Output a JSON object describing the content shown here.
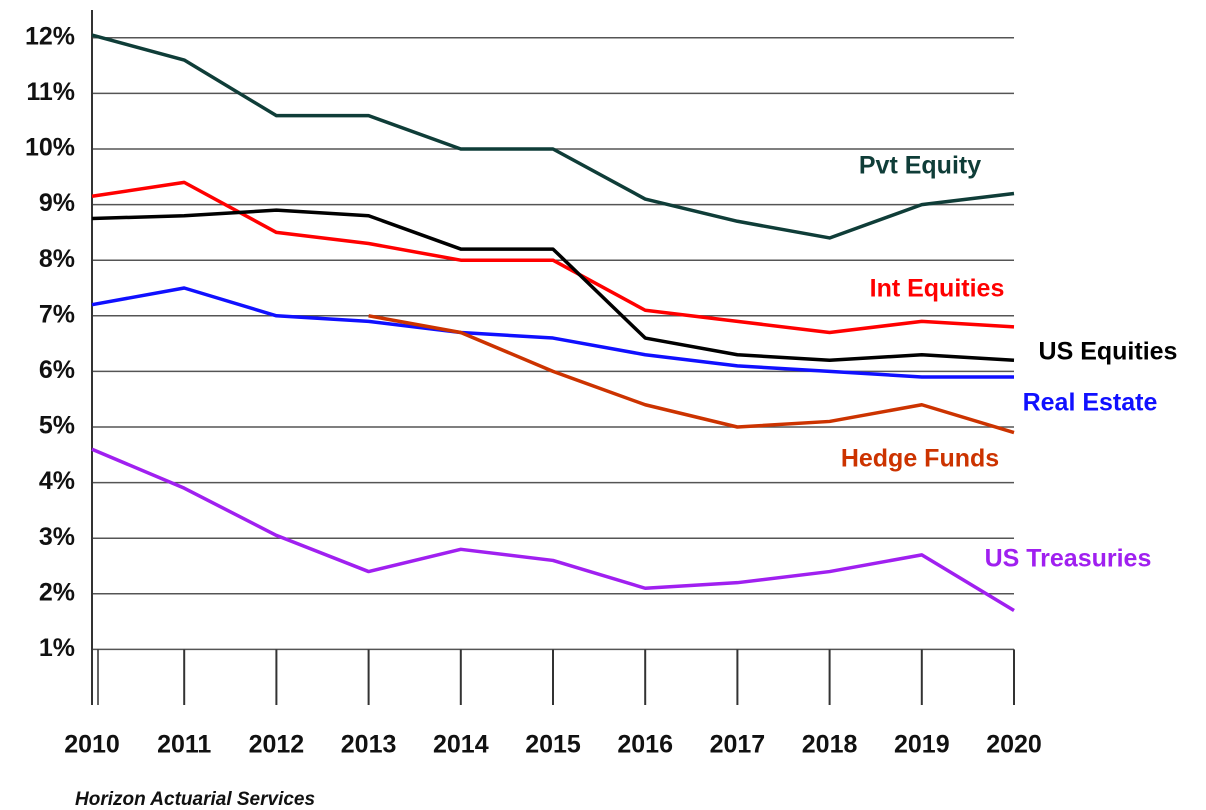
{
  "chart_data": {
    "type": "line",
    "categories": [
      "2010",
      "2011",
      "2012",
      "2013",
      "2014",
      "2015",
      "2016",
      "2017",
      "2018",
      "2019",
      "2020"
    ],
    "series": [
      {
        "name": "Pvt Equity",
        "color": "#0f3d38",
        "values": [
          12.05,
          11.6,
          10.6,
          10.6,
          10.0,
          10.0,
          9.1,
          8.7,
          8.4,
          9.0,
          9.2
        ]
      },
      {
        "name": "Int Equities",
        "color": "#ff0000",
        "values": [
          9.15,
          9.4,
          8.5,
          8.3,
          8.0,
          8.0,
          7.1,
          6.9,
          6.7,
          6.9,
          6.8
        ]
      },
      {
        "name": "US Equities",
        "color": "#000000",
        "values": [
          8.75,
          8.8,
          8.9,
          8.8,
          8.2,
          8.2,
          6.6,
          6.3,
          6.2,
          6.3,
          6.2
        ]
      },
      {
        "name": "Real Estate",
        "color": "#1010ff",
        "values": [
          7.2,
          7.5,
          7.0,
          6.9,
          6.7,
          6.6,
          6.3,
          6.1,
          6.0,
          5.9,
          5.9
        ]
      },
      {
        "name": "Hedge Funds",
        "color": "#cc3300",
        "values": [
          null,
          null,
          null,
          7.0,
          6.7,
          6.0,
          5.4,
          5.0,
          5.1,
          5.4,
          4.9
        ]
      },
      {
        "name": "US Treasuries",
        "color": "#a020f0",
        "values": [
          4.6,
          3.9,
          3.05,
          2.4,
          2.8,
          2.6,
          2.1,
          2.2,
          2.4,
          2.7,
          1.7
        ]
      }
    ],
    "ylim": [
      0,
      12.5
    ],
    "yticks": [
      {
        "value": 1,
        "label": "1%"
      },
      {
        "value": 2,
        "label": "2%"
      },
      {
        "value": 3,
        "label": "3%"
      },
      {
        "value": 4,
        "label": "4%"
      },
      {
        "value": 5,
        "label": "5%"
      },
      {
        "value": 6,
        "label": "6%"
      },
      {
        "value": 7,
        "label": "7%"
      },
      {
        "value": 8,
        "label": "8%"
      },
      {
        "value": 9,
        "label": "9%"
      },
      {
        "value": 10,
        "label": "10%"
      },
      {
        "value": 11,
        "label": "11%"
      },
      {
        "value": 12,
        "label": "12%"
      }
    ],
    "grid": true,
    "source": "Horizon Actuarial Services"
  }
}
